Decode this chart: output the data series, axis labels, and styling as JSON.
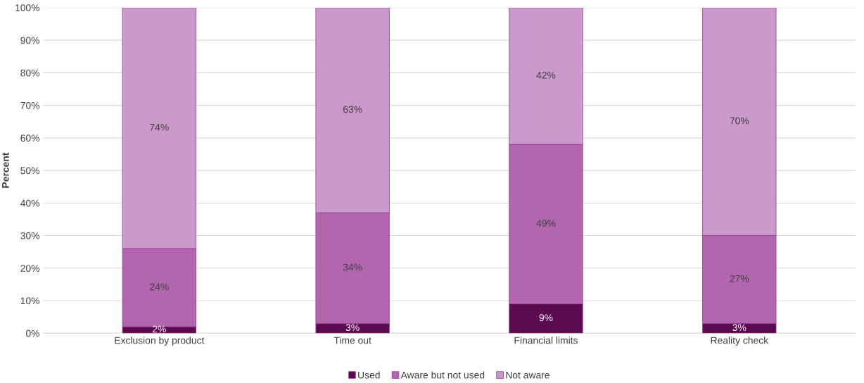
{
  "chart_data": {
    "type": "bar",
    "stacked": true,
    "ylabel": "Percent",
    "categories": [
      "Exclusion by product",
      "Time out",
      "Financial limits",
      "Reality check"
    ],
    "series": [
      {
        "name": "Used",
        "color": "#5c0a50",
        "values": [
          2,
          3,
          9,
          3
        ],
        "value_labels": [
          "2%",
          "3%",
          "9%",
          "3%"
        ]
      },
      {
        "name": "Aware but not used",
        "color": "#b266ae",
        "values": [
          24,
          34,
          49,
          27
        ],
        "value_labels": [
          "24%",
          "34%",
          "49%",
          "27%"
        ]
      },
      {
        "name": "Not aware",
        "color": "#cc99cc",
        "values": [
          74,
          63,
          42,
          70
        ],
        "value_labels": [
          "74%",
          "63%",
          "42%",
          "70%"
        ]
      }
    ],
    "ylim": [
      0,
      100
    ],
    "yticks": [
      {
        "value": 0,
        "label": "0%"
      },
      {
        "value": 10,
        "label": "10%"
      },
      {
        "value": 20,
        "label": "20%"
      },
      {
        "value": 30,
        "label": "30%"
      },
      {
        "value": 40,
        "label": "40%"
      },
      {
        "value": 50,
        "label": "50%"
      },
      {
        "value": 60,
        "label": "60%"
      },
      {
        "value": 70,
        "label": "70%"
      },
      {
        "value": 80,
        "label": "80%"
      },
      {
        "value": 90,
        "label": "90%"
      },
      {
        "value": 100,
        "label": "100%"
      }
    ],
    "grid": "y",
    "legend": "bottom"
  }
}
